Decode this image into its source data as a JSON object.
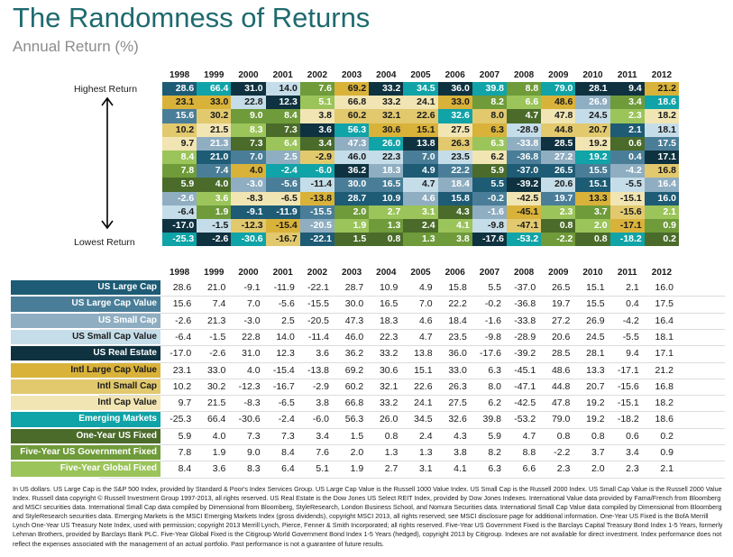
{
  "header": {
    "title": "The Randomness of Returns",
    "subtitle": "Annual Return (%)"
  },
  "ranking": {
    "top_label": "Highest Return",
    "bottom_label": "Lowest Return"
  },
  "colors": {
    "US Large Cap": "#1e5b75",
    "US Large Cap Value": "#4a7e98",
    "US Small Cap": "#8faec1",
    "US Small Cap Value": "#c5dde8",
    "US Real Estate": "#0f3240",
    "Intl Large Cap Value": "#d9b23a",
    "Intl Small Cap": "#e2c96e",
    "Intl Cap Value": "#f1e5b3",
    "Emerging Markets": "#10a3a7",
    "One-Year US Fixed": "#4a6b2a",
    "Five-Year US Government Fixed": "#6f9b3a",
    "Five-Year Global Fixed": "#9bc45a"
  },
  "chart_data": {
    "type": "table",
    "years": [
      "1998",
      "1999",
      "2000",
      "2001",
      "2002",
      "2003",
      "2004",
      "2005",
      "2006",
      "2007",
      "2008",
      "2009",
      "2010",
      "2011",
      "2012"
    ],
    "series": [
      {
        "name": "US Large Cap",
        "values": [
          "28.6",
          "21.0",
          "-9.1",
          "-11.9",
          "-22.1",
          "28.7",
          "10.9",
          "4.9",
          "15.8",
          "5.5",
          "-37.0",
          "26.5",
          "15.1",
          "2.1",
          "16.0"
        ]
      },
      {
        "name": "US Large Cap Value",
        "values": [
          "15.6",
          "7.4",
          "7.0",
          "-5.6",
          "-15.5",
          "30.0",
          "16.5",
          "7.0",
          "22.2",
          "-0.2",
          "-36.8",
          "19.7",
          "15.5",
          "0.4",
          "17.5"
        ]
      },
      {
        "name": "US Small Cap",
        "values": [
          "-2.6",
          "21.3",
          "-3.0",
          "2.5",
          "-20.5",
          "47.3",
          "18.3",
          "4.6",
          "18.4",
          "-1.6",
          "-33.8",
          "27.2",
          "26.9",
          "-4.2",
          "16.4"
        ]
      },
      {
        "name": "US Small Cap Value",
        "values": [
          "-6.4",
          "-1.5",
          "22.8",
          "14.0",
          "-11.4",
          "46.0",
          "22.3",
          "4.7",
          "23.5",
          "-9.8",
          "-28.9",
          "20.6",
          "24.5",
          "-5.5",
          "18.1"
        ]
      },
      {
        "name": "US Real Estate",
        "values": [
          "-17.0",
          "-2.6",
          "31.0",
          "12.3",
          "3.6",
          "36.2",
          "33.2",
          "13.8",
          "36.0",
          "-17.6",
          "-39.2",
          "28.5",
          "28.1",
          "9.4",
          "17.1"
        ]
      },
      {
        "name": "Intl Large Cap Value",
        "values": [
          "23.1",
          "33.0",
          "4.0",
          "-15.4",
          "-13.8",
          "69.2",
          "30.6",
          "15.1",
          "33.0",
          "6.3",
          "-45.1",
          "48.6",
          "13.3",
          "-17.1",
          "21.2"
        ]
      },
      {
        "name": "Intl Small Cap",
        "values": [
          "10.2",
          "30.2",
          "-12.3",
          "-16.7",
          "-2.9",
          "60.2",
          "32.1",
          "22.6",
          "26.3",
          "8.0",
          "-47.1",
          "44.8",
          "20.7",
          "-15.6",
          "16.8"
        ]
      },
      {
        "name": "Intl Cap Value",
        "values": [
          "9.7",
          "21.5",
          "-8.3",
          "-6.5",
          "3.8",
          "66.8",
          "33.2",
          "24.1",
          "27.5",
          "6.2",
          "-42.5",
          "47.8",
          "19.2",
          "-15.1",
          "18.2"
        ]
      },
      {
        "name": "Emerging Markets",
        "values": [
          "-25.3",
          "66.4",
          "-30.6",
          "-2.4",
          "-6.0",
          "56.3",
          "26.0",
          "34.5",
          "32.6",
          "39.8",
          "-53.2",
          "79.0",
          "19.2",
          "-18.2",
          "18.6"
        ]
      },
      {
        "name": "One-Year US Fixed",
        "values": [
          "5.9",
          "4.0",
          "7.3",
          "7.3",
          "3.4",
          "1.5",
          "0.8",
          "2.4",
          "4.3",
          "5.9",
          "4.7",
          "0.8",
          "0.8",
          "0.6",
          "0.2"
        ]
      },
      {
        "name": "Five-Year US Government Fixed",
        "values": [
          "7.8",
          "1.9",
          "9.0",
          "8.4",
          "7.6",
          "2.0",
          "1.3",
          "1.3",
          "3.8",
          "8.2",
          "8.8",
          "-2.2",
          "3.7",
          "3.4",
          "0.9"
        ]
      },
      {
        "name": "Five-Year Global Fixed",
        "values": [
          "8.4",
          "3.6",
          "8.3",
          "6.4",
          "5.1",
          "1.9",
          "2.7",
          "3.1",
          "4.1",
          "6.3",
          "6.6",
          "2.3",
          "2.0",
          "2.3",
          "2.1"
        ]
      }
    ]
  },
  "footnote": "In US dollars. US Large Cap is the S&P 500 Index, provided by Standard & Poor's Index Services Group. US Large Cap Value is the Russell 1000 Value Index. US Small Cap is the Russell 2000 Index. US Small Cap Value is the Russell 2000 Value Index. Russell data copyright © Russell Investment Group 1997-2013, all rights reserved. US Real Estate is the Dow Jones US Select REIT Index, provided by Dow Jones Indexes. International Value data provided by Fama/French from Bloomberg and MSCI securities data. International Small Cap data compiled by Dimensional from Bloomberg, StyleResearch, London Business School, and Nomura Securities data. International Small Cap Value data compiled by Dimensional from Bloomberg and StyleResearch securities data. Emerging Markets is the MSCI Emerging Markets Index (gross dividends), copyright MSCI 2013, all rights reserved; see MSCI disclosure page for additional information. One-Year US Fixed is the BofA Merrill Lynch One-Year US Treasury Note Index, used with permission; copyright 2013 Merrill Lynch, Pierce, Fenner & Smith Incorporated; all rights reserved. Five-Year US Government Fixed is the Barclays Capital Treasury Bond Index 1-5 Years, formerly Lehman Brothers, provided by Barclays Bank PLC. Five-Year Global Fixed is the Citigroup World Government Bond Index 1-5 Years (hedged), copyright 2013 by Citigroup. Indexes are not available for direct investment. Index performance does not reflect the expenses associated with the management of an actual portfolio. Past performance is not a guarantee of future results."
}
